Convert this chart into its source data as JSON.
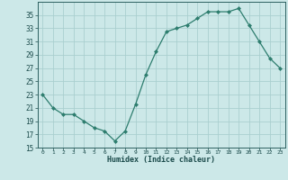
{
  "x": [
    0,
    1,
    2,
    3,
    4,
    5,
    6,
    7,
    8,
    9,
    10,
    11,
    12,
    13,
    14,
    15,
    16,
    17,
    18,
    19,
    20,
    21,
    22,
    23
  ],
  "y": [
    23,
    21,
    20,
    20,
    19,
    18,
    17.5,
    16,
    17.5,
    21.5,
    26,
    29.5,
    32.5,
    33,
    33.5,
    34.5,
    35.5,
    35.5,
    35.5,
    36,
    33.5,
    31,
    28.5,
    27
  ],
  "xlabel": "Humidex (Indice chaleur)",
  "line_color": "#2d7d6e",
  "bg_color": "#cce8e8",
  "grid_color": "#aacfcf",
  "xlim": [
    -0.5,
    23.5
  ],
  "ylim": [
    15,
    37
  ],
  "yticks": [
    15,
    17,
    19,
    21,
    23,
    25,
    27,
    29,
    31,
    33,
    35
  ],
  "xticks": [
    0,
    1,
    2,
    3,
    4,
    5,
    6,
    7,
    8,
    9,
    10,
    11,
    12,
    13,
    14,
    15,
    16,
    17,
    18,
    19,
    20,
    21,
    22,
    23
  ]
}
